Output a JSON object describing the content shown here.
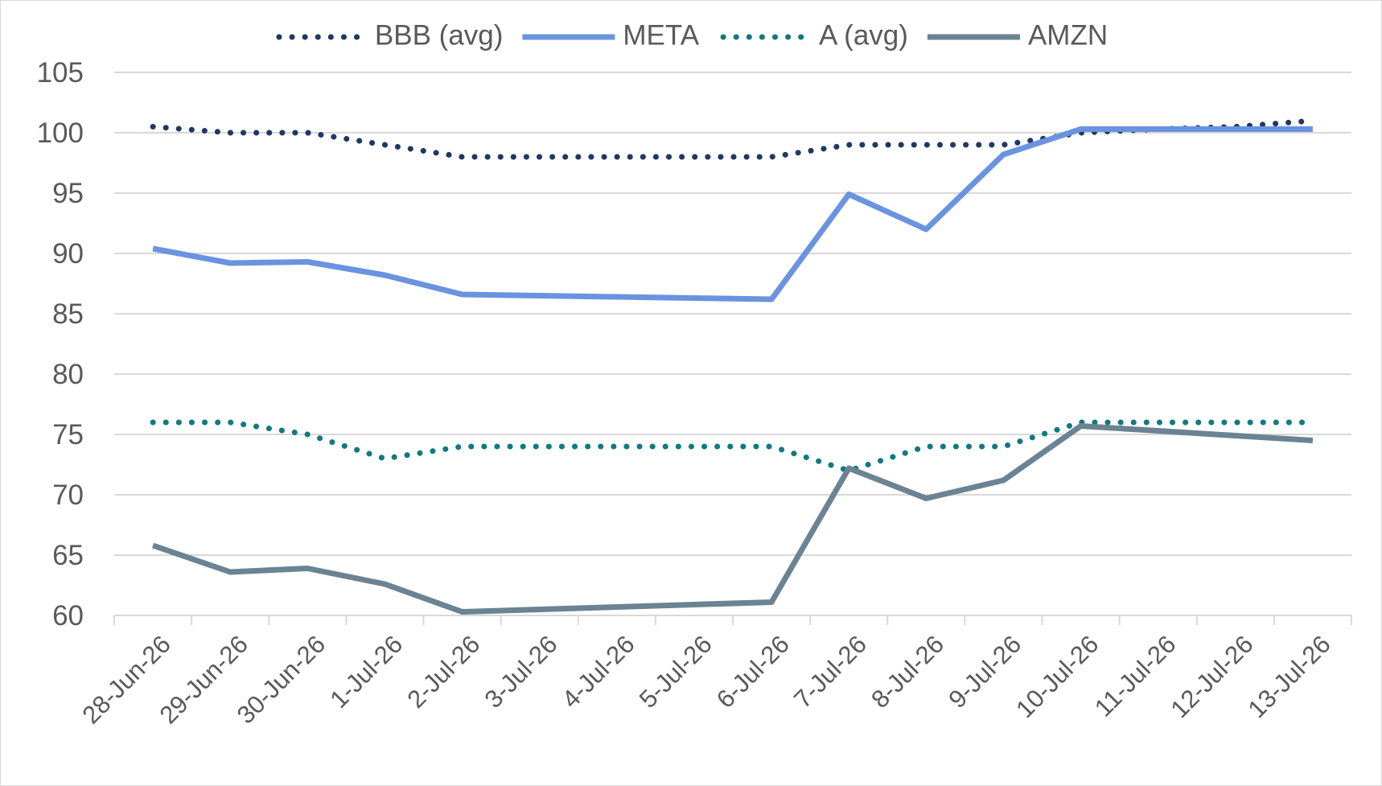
{
  "chart_data": {
    "type": "line",
    "x": [
      "28-Jun-26",
      "29-Jun-26",
      "30-Jun-26",
      "1-Jul-26",
      "2-Jul-26",
      "3-Jul-26",
      "4-Jul-26",
      "5-Jul-26",
      "6-Jul-26",
      "7-Jul-26",
      "8-Jul-26",
      "9-Jul-26",
      "10-Jul-26",
      "11-Jul-26",
      "12-Jul-26",
      "13-Jul-26"
    ],
    "ylim": [
      60,
      105
    ],
    "yticks": [
      60,
      65,
      70,
      75,
      80,
      85,
      90,
      95,
      100,
      105
    ],
    "grid": true,
    "legend_position": "top",
    "series": [
      {
        "name": "BBB (avg)",
        "color": "#1f3864",
        "style": "dotted",
        "values": [
          100.5,
          100.0,
          100.0,
          99.0,
          98.0,
          98.0,
          98.0,
          98.0,
          98.0,
          99.0,
          99.0,
          99.0,
          100.0,
          100.3,
          100.5,
          101.0
        ]
      },
      {
        "name": "META",
        "color": "#6a93e0",
        "style": "solid",
        "values": [
          90.4,
          89.2,
          89.3,
          88.2,
          86.6,
          86.5,
          86.4,
          86.3,
          86.2,
          94.9,
          92.0,
          98.2,
          100.3,
          100.3,
          100.3,
          100.3
        ]
      },
      {
        "name": "A (avg)",
        "color": "#117a80",
        "style": "dotted",
        "values": [
          76.0,
          76.0,
          75.0,
          73.0,
          74.0,
          74.0,
          74.0,
          74.0,
          74.0,
          72.0,
          74.0,
          74.0,
          76.0,
          76.0,
          76.0,
          76.0
        ]
      },
      {
        "name": "AMZN",
        "color": "#6b8393",
        "style": "solid",
        "values": [
          65.8,
          63.6,
          63.9,
          62.6,
          60.3,
          60.5,
          60.7,
          60.9,
          61.1,
          72.2,
          69.7,
          71.2,
          75.7,
          75.3,
          74.9,
          74.5
        ]
      }
    ]
  }
}
